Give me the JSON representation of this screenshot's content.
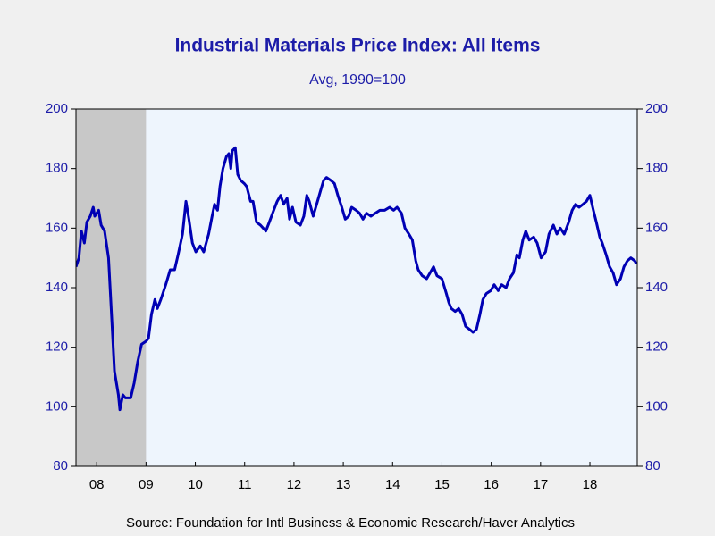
{
  "chart_data": {
    "type": "line",
    "title": "Industrial Materials Price Index: All Items",
    "subtitle": "Avg, 1990=100",
    "source": "Source:  Foundation for Intl Business & Economic Research/Haver Analytics",
    "xlim": [
      2008.08,
      2019.46
    ],
    "ylim": [
      80,
      200
    ],
    "yticks": [
      80,
      100,
      120,
      140,
      160,
      180,
      200
    ],
    "y2lim": [
      80,
      200
    ],
    "y2ticks": [
      80,
      100,
      120,
      140,
      160,
      180,
      200
    ],
    "xticks": [
      {
        "value": 2008.5,
        "label": "08"
      },
      {
        "value": 2009.5,
        "label": "09"
      },
      {
        "value": 2010.5,
        "label": "10"
      },
      {
        "value": 2011.5,
        "label": "11"
      },
      {
        "value": 2012.5,
        "label": "12"
      },
      {
        "value": 2013.5,
        "label": "13"
      },
      {
        "value": 2014.5,
        "label": "14"
      },
      {
        "value": 2015.5,
        "label": "15"
      },
      {
        "value": 2016.5,
        "label": "16"
      },
      {
        "value": 2017.5,
        "label": "17"
      },
      {
        "value": 2018.5,
        "label": "18"
      }
    ],
    "shaded_ranges": [
      [
        2007.92,
        2009.5
      ]
    ],
    "shade_color": "#c8c8c8",
    "plot_background": "#eef5fd",
    "x": [
      2008.08,
      2008.14,
      2008.19,
      2008.25,
      2008.3,
      2008.37,
      2008.43,
      2008.46,
      2008.54,
      2008.59,
      2008.66,
      2008.74,
      2008.81,
      2008.86,
      2008.94,
      2008.97,
      2009.03,
      2009.08,
      2009.19,
      2009.26,
      2009.33,
      2009.41,
      2009.5,
      2009.55,
      2009.61,
      2009.68,
      2009.73,
      2009.8,
      2009.9,
      2009.99,
      2010.08,
      2010.15,
      2010.24,
      2010.31,
      2010.37,
      2010.44,
      2010.51,
      2010.6,
      2010.67,
      2010.77,
      2010.84,
      2010.89,
      2010.95,
      2011.0,
      2011.06,
      2011.13,
      2011.18,
      2011.22,
      2011.25,
      2011.31,
      2011.36,
      2011.42,
      2011.49,
      2011.54,
      2011.62,
      2011.67,
      2011.74,
      2011.82,
      2011.93,
      2012.0,
      2012.09,
      2012.16,
      2012.23,
      2012.29,
      2012.36,
      2012.41,
      2012.47,
      2012.54,
      2012.63,
      2012.7,
      2012.76,
      2012.81,
      2012.89,
      2012.96,
      2013.03,
      2013.1,
      2013.16,
      2013.25,
      2013.32,
      2013.39,
      2013.47,
      2013.54,
      2013.61,
      2013.67,
      2013.76,
      2013.83,
      2013.9,
      2013.97,
      2014.06,
      2014.15,
      2014.24,
      2014.34,
      2014.44,
      2014.52,
      2014.59,
      2014.68,
      2014.75,
      2014.83,
      2014.9,
      2014.97,
      2015.02,
      2015.1,
      2015.19,
      2015.26,
      2015.33,
      2015.4,
      2015.5,
      2015.59,
      2015.64,
      2015.69,
      2015.77,
      2015.84,
      2015.91,
      2015.98,
      2016.06,
      2016.13,
      2016.2,
      2016.27,
      2016.33,
      2016.4,
      2016.49,
      2016.56,
      2016.64,
      2016.71,
      2016.8,
      2016.87,
      2016.95,
      2017.02,
      2017.07,
      2017.14,
      2017.2,
      2017.27,
      2017.36,
      2017.43,
      2017.51,
      2017.6,
      2017.67,
      2017.76,
      2017.83,
      2017.9,
      2017.98,
      2018.07,
      2018.14,
      2018.21,
      2018.28,
      2018.36,
      2018.43,
      2018.5,
      2018.57,
      2018.63,
      2018.7,
      2018.75,
      2018.83,
      2018.9,
      2018.97,
      2019.04,
      2019.12,
      2019.19,
      2019.26,
      2019.33,
      2019.41,
      2019.44
    ],
    "series": [
      {
        "name": "All Items",
        "color": "#0000b4",
        "values": [
          147,
          150,
          159,
          155,
          162,
          164,
          167,
          164,
          166,
          161,
          159,
          150,
          128,
          112,
          104,
          99,
          104,
          103,
          103,
          108,
          115,
          121,
          122,
          123,
          131,
          136,
          133,
          136,
          141,
          146,
          146,
          151,
          158,
          169,
          163,
          155,
          152,
          154,
          152,
          158,
          164,
          168,
          166,
          174,
          180,
          184,
          185,
          180,
          186,
          187,
          178,
          176,
          175,
          174,
          169,
          169,
          162,
          161,
          159,
          162,
          166,
          169,
          171,
          168,
          170,
          163,
          167,
          162,
          161,
          164,
          171,
          169,
          164,
          168,
          172,
          176,
          177,
          176,
          175,
          171,
          167,
          163,
          164,
          167,
          166,
          165,
          163,
          165,
          164,
          165,
          166,
          166,
          167,
          166,
          167,
          165,
          160,
          158,
          156,
          149,
          146,
          144,
          143,
          145,
          147,
          144,
          143,
          138,
          135,
          133,
          132,
          133,
          131,
          127,
          126,
          125,
          126,
          131,
          136,
          138,
          139,
          141,
          139,
          141,
          140,
          143,
          145,
          151,
          150,
          156,
          159,
          156,
          157,
          155,
          150,
          152,
          158,
          161,
          158,
          160,
          158,
          162,
          166,
          168,
          167,
          168,
          169,
          171,
          166,
          162,
          157,
          155,
          151,
          147,
          145,
          141,
          143,
          147,
          149,
          150,
          149,
          148
        ]
      }
    ]
  }
}
